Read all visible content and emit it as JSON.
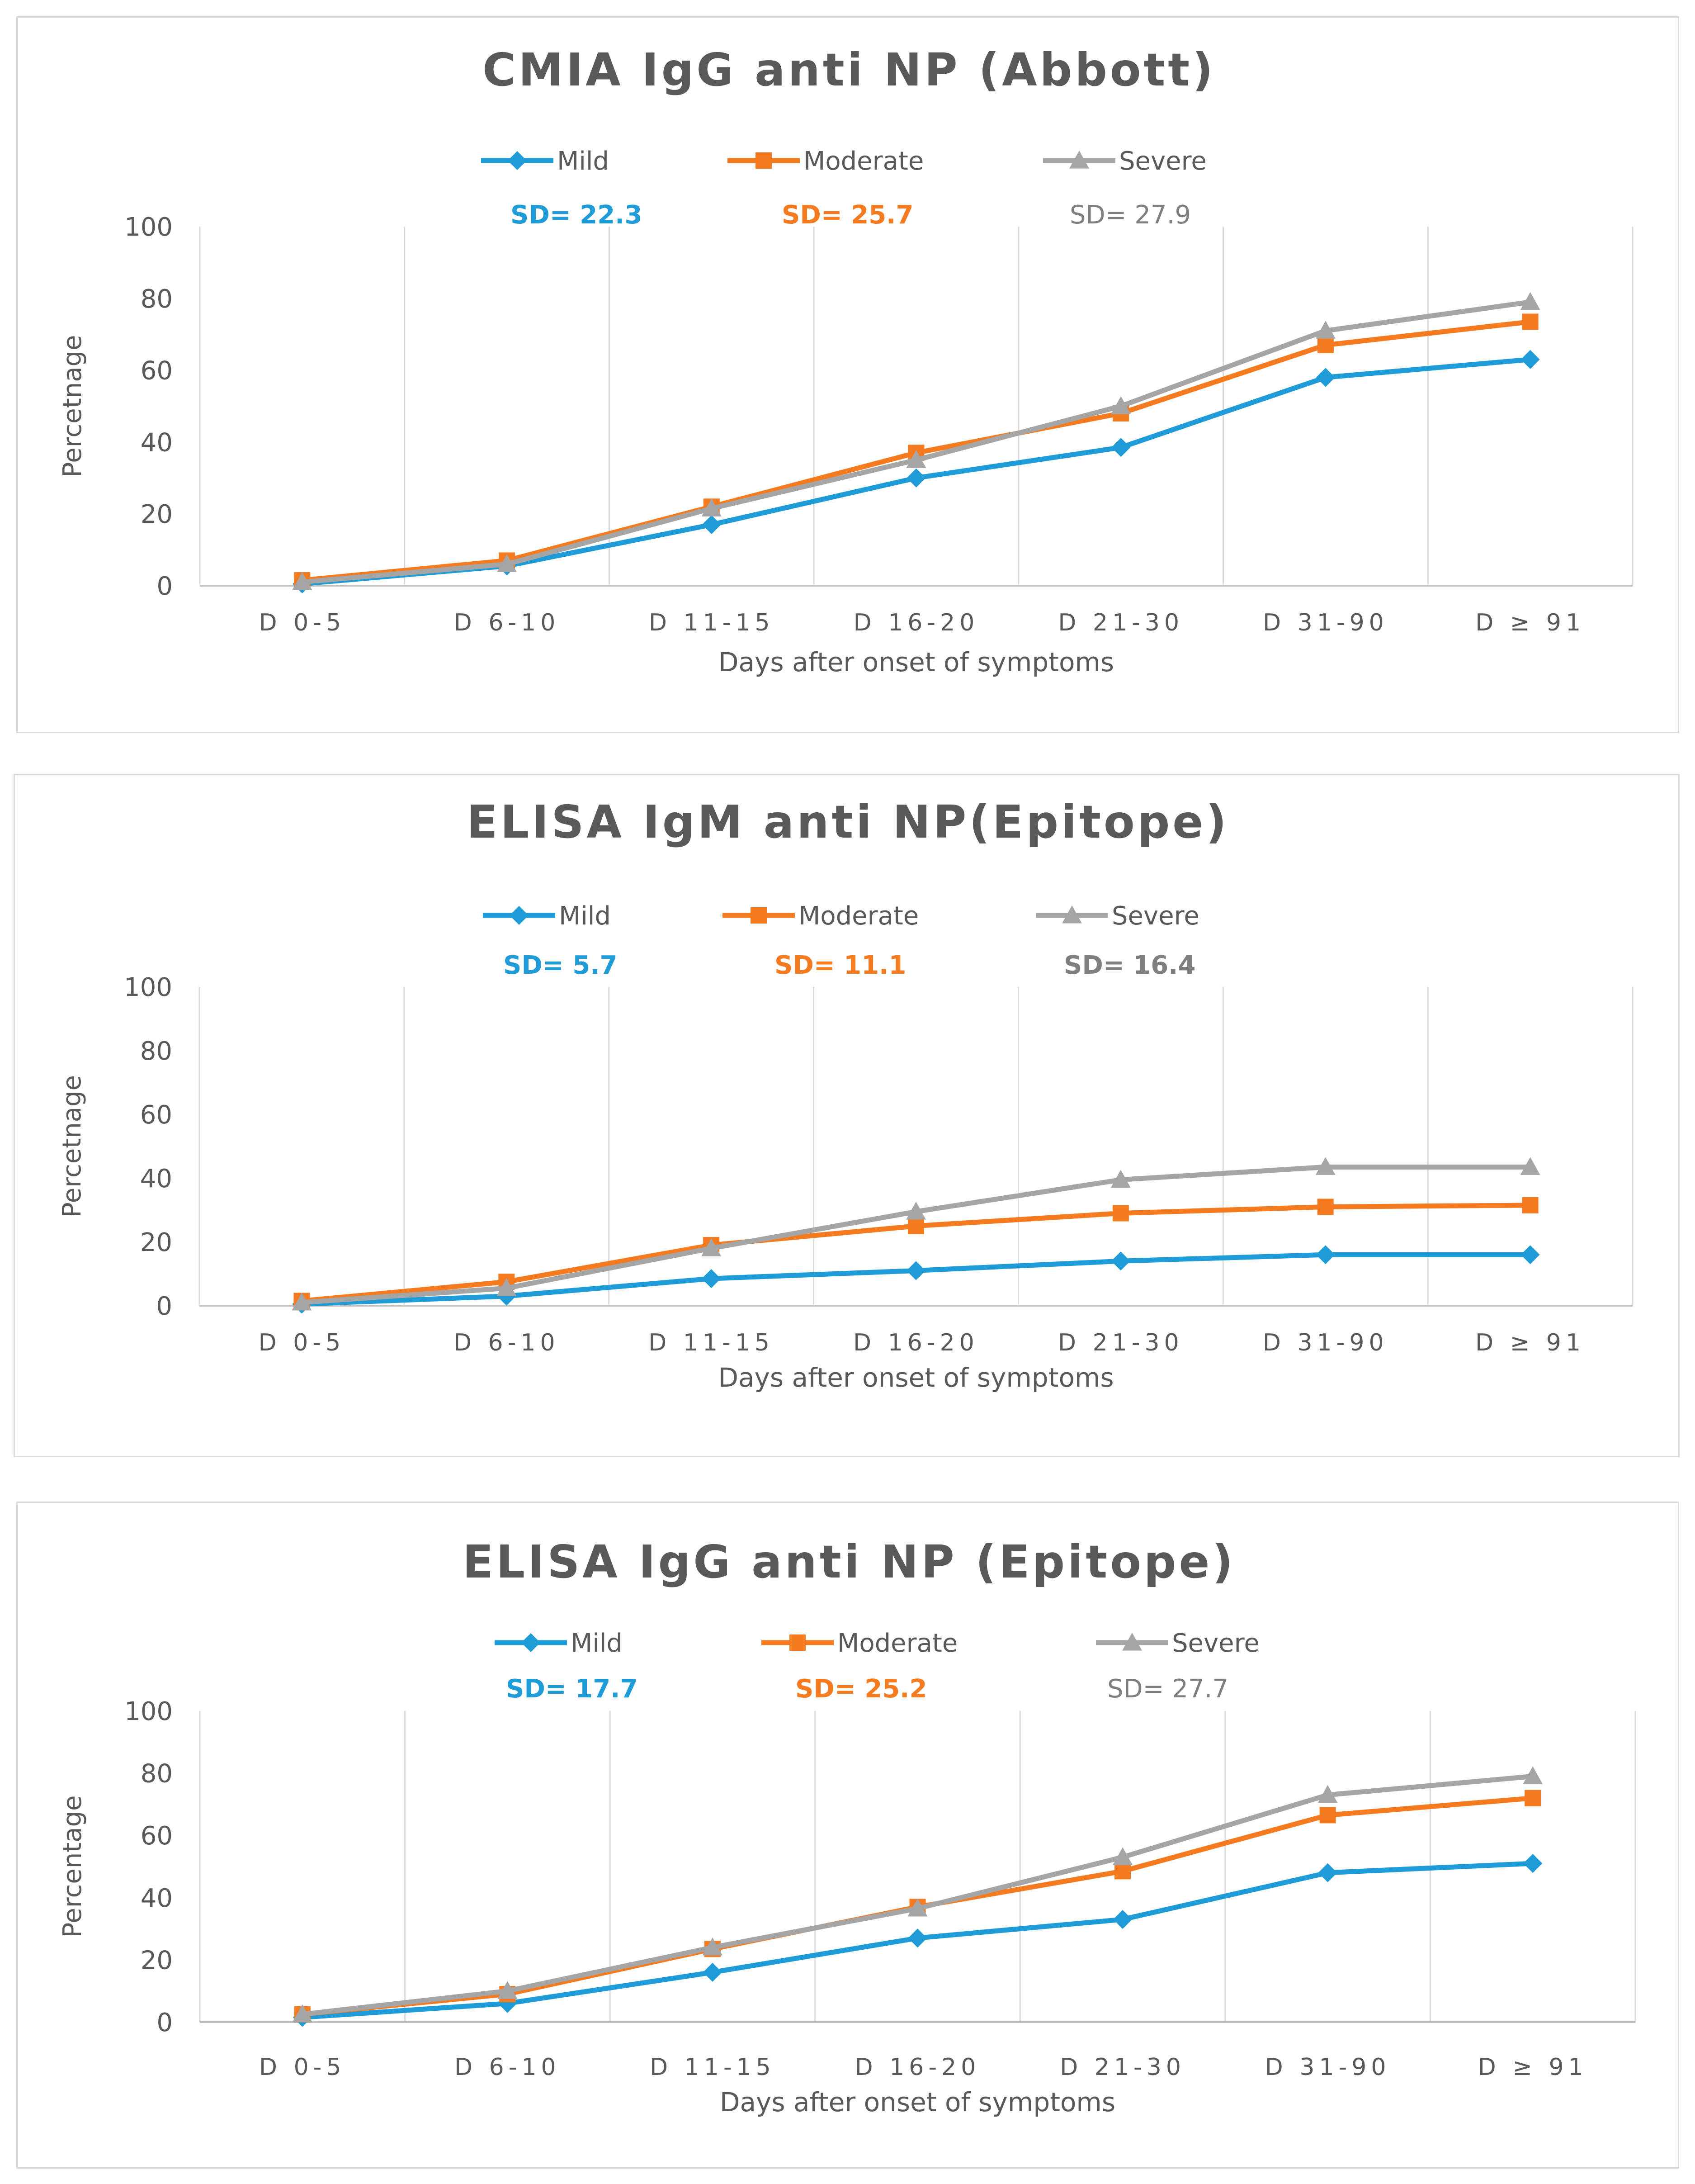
{
  "chart_data": [
    {
      "type": "line",
      "title": "CMIA IgG anti NP (Abbott)",
      "xlabel": "Days after onset of symptoms",
      "ylabel": "Percetnage",
      "ylim": [
        0,
        100
      ],
      "yticks": [
        "0",
        "20",
        "40",
        "60",
        "80",
        "100"
      ],
      "categories": [
        "D 0-5",
        "D 6-10",
        "D 11-15",
        "D 16-20",
        "D 21-30",
        "D 31-90",
        "D ≥ 91"
      ],
      "series": [
        {
          "name": "Mild",
          "color": "#1f9bd7",
          "marker": "diamond",
          "sd": "SD= 22.3",
          "values": [
            0.5,
            5.5,
            17,
            30,
            38.5,
            58,
            63
          ]
        },
        {
          "name": "Moderate",
          "color": "#f47b20",
          "marker": "square",
          "sd": "SD= 25.7",
          "values": [
            1.5,
            7,
            22,
            37,
            48,
            67,
            73.5
          ]
        },
        {
          "name": "Severe",
          "color": "#a5a5a5",
          "marker": "triangle",
          "sd": "SD= 27.9",
          "values": [
            1,
            6,
            21.5,
            35,
            50,
            71,
            79
          ]
        }
      ]
    },
    {
      "type": "line",
      "title": "ELISA IgM anti NP(Epitope)",
      "xlabel": "Days after onset of symptoms",
      "ylabel": "Percetnage",
      "ylim": [
        0,
        100
      ],
      "yticks": [
        "0",
        "20",
        "40",
        "60",
        "80",
        "100"
      ],
      "categories": [
        "D 0-5",
        "D 6-10",
        "D 11-15",
        "D 16-20",
        "D 21-30",
        "D 31-90",
        "D ≥ 91"
      ],
      "series": [
        {
          "name": "Mild",
          "color": "#1f9bd7",
          "marker": "diamond",
          "sd": "SD= 5.7",
          "values": [
            0.5,
            3,
            8.5,
            11,
            14,
            16,
            16
          ]
        },
        {
          "name": "Moderate",
          "color": "#f47b20",
          "marker": "square",
          "sd": "SD= 11.1",
          "values": [
            1.5,
            7.5,
            19,
            25,
            29,
            31,
            31.5
          ]
        },
        {
          "name": "Severe",
          "color": "#a5a5a5",
          "marker": "triangle",
          "sd": "SD= 16.4",
          "values": [
            1,
            5.5,
            18,
            29.5,
            39.5,
            43.5,
            43.5
          ]
        }
      ]
    },
    {
      "type": "line",
      "title": "ELISA IgG anti NP (Epitope)",
      "xlabel": "Days after onset of symptoms",
      "ylabel": "Percentage",
      "ylim": [
        0,
        100
      ],
      "yticks": [
        "0",
        "20",
        "40",
        "60",
        "80",
        "100"
      ],
      "categories": [
        "D 0-5",
        "D 6-10",
        "D 11-15",
        "D 16-20",
        "D 21-30",
        "D 31-90",
        "D ≥ 91"
      ],
      "series": [
        {
          "name": "Mild",
          "color": "#1f9bd7",
          "marker": "diamond",
          "sd": "SD= 17.7",
          "values": [
            1.5,
            6,
            16,
            27,
            33,
            48,
            51
          ]
        },
        {
          "name": "Moderate",
          "color": "#f47b20",
          "marker": "square",
          "sd": "SD= 25.2",
          "values": [
            2.5,
            9,
            23.5,
            37,
            48.5,
            66.5,
            72
          ]
        },
        {
          "name": "Severe",
          "color": "#a5a5a5",
          "marker": "triangle",
          "sd": "SD= 27.7",
          "values": [
            2.5,
            10,
            24,
            36.5,
            53,
            73,
            79
          ]
        }
      ]
    }
  ]
}
